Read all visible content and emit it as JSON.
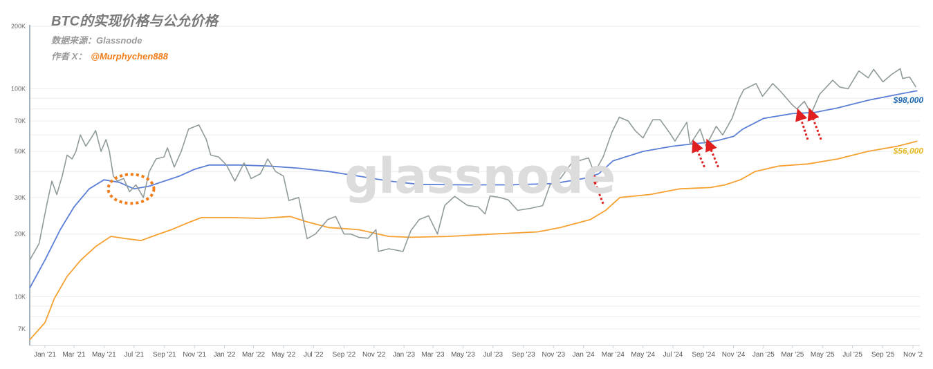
{
  "header": {
    "title": "BTC的实现价格与公允价格",
    "source": "数据来源：Glassnode",
    "author_prefix": "作者 X：",
    "author_handle": "@Murphychen888"
  },
  "watermark": "glassnode",
  "colors": {
    "price": "#8f9a9a",
    "fair": "#5b7fd6",
    "realized": "#f5a030",
    "annotation_arrow": "#e02020",
    "annotation_circle": "#f07d1a",
    "fair_label": "#1e6ab0",
    "realized_label": "#e6b820"
  },
  "chart_data": {
    "type": "line",
    "title": "BTC的实现价格与公允价格",
    "y_scale": "log",
    "ylim": [
      6000,
      200000
    ],
    "yticks": [
      {
        "value": 7000,
        "label": "7K"
      },
      {
        "value": 10000,
        "label": "10K"
      },
      {
        "value": 20000,
        "label": "20K"
      },
      {
        "value": 30000,
        "label": "30K"
      },
      {
        "value": 50000,
        "label": "50K"
      },
      {
        "value": 70000,
        "label": "70K"
      },
      {
        "value": 100000,
        "label": "100K"
      },
      {
        "value": 200000,
        "label": "200K"
      }
    ],
    "xlim": [
      "2020-12-01",
      "2025-11-15"
    ],
    "xticks": [
      {
        "date": "2021-01-01",
        "label": "Jan '21"
      },
      {
        "date": "2021-03-01",
        "label": "Mar '21"
      },
      {
        "date": "2021-05-01",
        "label": "May '21"
      },
      {
        "date": "2021-07-01",
        "label": "Jul '21"
      },
      {
        "date": "2021-09-01",
        "label": "Sep '21"
      },
      {
        "date": "2021-11-01",
        "label": "Nov '21"
      },
      {
        "date": "2022-01-01",
        "label": "Jan '22"
      },
      {
        "date": "2022-03-01",
        "label": "Mar '22"
      },
      {
        "date": "2022-05-01",
        "label": "May '22"
      },
      {
        "date": "2022-07-01",
        "label": "Jul '22"
      },
      {
        "date": "2022-09-01",
        "label": "Sep '22"
      },
      {
        "date": "2022-11-01",
        "label": "Nov '22"
      },
      {
        "date": "2023-01-01",
        "label": "Jan '23"
      },
      {
        "date": "2023-03-01",
        "label": "Mar '23"
      },
      {
        "date": "2023-05-01",
        "label": "May '23"
      },
      {
        "date": "2023-07-01",
        "label": "Jul '23"
      },
      {
        "date": "2023-09-01",
        "label": "Sep '23"
      },
      {
        "date": "2023-11-01",
        "label": "Nov '23"
      },
      {
        "date": "2024-01-01",
        "label": "Jan '24"
      },
      {
        "date": "2024-03-01",
        "label": "Mar '24"
      },
      {
        "date": "2024-05-01",
        "label": "May '24"
      },
      {
        "date": "2024-07-01",
        "label": "Jul '24"
      },
      {
        "date": "2024-09-01",
        "label": "Sep '24"
      },
      {
        "date": "2024-11-01",
        "label": "Nov '24"
      },
      {
        "date": "2025-01-01",
        "label": "Jan '25"
      },
      {
        "date": "2025-03-01",
        "label": "Mar '25"
      },
      {
        "date": "2025-05-01",
        "label": "May '25"
      },
      {
        "date": "2025-07-01",
        "label": "Jul '25"
      },
      {
        "date": "2025-09-01",
        "label": "Sep '25"
      },
      {
        "date": "2025-11-01",
        "label": "Nov '2"
      }
    ],
    "grid": true,
    "series": [
      {
        "key": "price",
        "points": [
          [
            "2020-12-01",
            15000
          ],
          [
            "2020-12-20",
            18000
          ],
          [
            "2021-01-05",
            28000
          ],
          [
            "2021-01-15",
            36000
          ],
          [
            "2021-01-25",
            31000
          ],
          [
            "2021-02-05",
            38000
          ],
          [
            "2021-02-15",
            48000
          ],
          [
            "2021-02-25",
            46000
          ],
          [
            "2021-03-05",
            50000
          ],
          [
            "2021-03-14",
            60000
          ],
          [
            "2021-03-25",
            53000
          ],
          [
            "2021-04-05",
            58000
          ],
          [
            "2021-04-14",
            63000
          ],
          [
            "2021-04-25",
            50000
          ],
          [
            "2021-05-05",
            57000
          ],
          [
            "2021-05-12",
            50000
          ],
          [
            "2021-05-20",
            38000
          ],
          [
            "2021-05-28",
            36000
          ],
          [
            "2021-06-10",
            37000
          ],
          [
            "2021-06-22",
            32000
          ],
          [
            "2021-07-05",
            34500
          ],
          [
            "2021-07-20",
            30000
          ],
          [
            "2021-08-01",
            40000
          ],
          [
            "2021-08-15",
            46000
          ],
          [
            "2021-08-31",
            47000
          ],
          [
            "2021-09-07",
            52000
          ],
          [
            "2021-09-21",
            42000
          ],
          [
            "2021-10-05",
            50000
          ],
          [
            "2021-10-20",
            64000
          ],
          [
            "2021-11-10",
            67000
          ],
          [
            "2021-11-25",
            57000
          ],
          [
            "2021-12-04",
            48000
          ],
          [
            "2021-12-20",
            47000
          ],
          [
            "2022-01-05",
            43000
          ],
          [
            "2022-01-22",
            36000
          ],
          [
            "2022-02-10",
            44000
          ],
          [
            "2022-02-24",
            37000
          ],
          [
            "2022-03-15",
            39000
          ],
          [
            "2022-03-30",
            46000
          ],
          [
            "2022-04-15",
            40000
          ],
          [
            "2022-05-01",
            38000
          ],
          [
            "2022-05-12",
            29000
          ],
          [
            "2022-06-01",
            30000
          ],
          [
            "2022-06-18",
            19000
          ],
          [
            "2022-07-05",
            20000
          ],
          [
            "2022-07-30",
            23500
          ],
          [
            "2022-08-15",
            24300
          ],
          [
            "2022-09-01",
            20000
          ],
          [
            "2022-09-15",
            20000
          ],
          [
            "2022-10-01",
            19300
          ],
          [
            "2022-10-20",
            19100
          ],
          [
            "2022-11-05",
            21000
          ],
          [
            "2022-11-10",
            16500
          ],
          [
            "2022-12-01",
            17000
          ],
          [
            "2022-12-30",
            16500
          ],
          [
            "2023-01-15",
            20800
          ],
          [
            "2023-02-01",
            23500
          ],
          [
            "2023-02-20",
            24500
          ],
          [
            "2023-03-10",
            20000
          ],
          [
            "2023-03-25",
            27500
          ],
          [
            "2023-04-14",
            30400
          ],
          [
            "2023-05-10",
            27500
          ],
          [
            "2023-06-01",
            27000
          ],
          [
            "2023-06-15",
            25000
          ],
          [
            "2023-06-25",
            30500
          ],
          [
            "2023-07-15",
            30000
          ],
          [
            "2023-08-01",
            29200
          ],
          [
            "2023-08-20",
            26000
          ],
          [
            "2023-09-15",
            26600
          ],
          [
            "2023-10-10",
            27400
          ],
          [
            "2023-10-25",
            34500
          ],
          [
            "2023-11-15",
            37000
          ],
          [
            "2023-12-08",
            44000
          ],
          [
            "2024-01-11",
            46500
          ],
          [
            "2024-01-23",
            39500
          ],
          [
            "2024-02-10",
            47000
          ],
          [
            "2024-02-28",
            62000
          ],
          [
            "2024-03-14",
            73000
          ],
          [
            "2024-04-01",
            70000
          ],
          [
            "2024-04-15",
            63000
          ],
          [
            "2024-05-01",
            58000
          ],
          [
            "2024-05-21",
            71000
          ],
          [
            "2024-06-05",
            71000
          ],
          [
            "2024-06-25",
            61000
          ],
          [
            "2024-07-05",
            56000
          ],
          [
            "2024-07-29",
            69000
          ],
          [
            "2024-08-05",
            54000
          ],
          [
            "2024-08-25",
            64000
          ],
          [
            "2024-09-06",
            53000
          ],
          [
            "2024-09-27",
            66000
          ],
          [
            "2024-10-10",
            60000
          ],
          [
            "2024-10-29",
            72000
          ],
          [
            "2024-11-13",
            90000
          ],
          [
            "2024-11-22",
            99000
          ],
          [
            "2024-12-17",
            106000
          ],
          [
            "2024-12-30",
            92000
          ],
          [
            "2025-01-20",
            106000
          ],
          [
            "2025-02-05",
            97000
          ],
          [
            "2025-02-28",
            84000
          ],
          [
            "2025-03-10",
            80000
          ],
          [
            "2025-03-25",
            87000
          ],
          [
            "2025-04-08",
            76000
          ],
          [
            "2025-04-25",
            94000
          ],
          [
            "2025-05-22",
            110000
          ],
          [
            "2025-06-05",
            102000
          ],
          [
            "2025-06-22",
            100000
          ],
          [
            "2025-07-14",
            122000
          ],
          [
            "2025-08-02",
            113000
          ],
          [
            "2025-08-13",
            124000
          ],
          [
            "2025-09-01",
            108000
          ],
          [
            "2025-09-18",
            117000
          ],
          [
            "2025-10-06",
            125000
          ],
          [
            "2025-10-11",
            112000
          ],
          [
            "2025-10-25",
            114000
          ],
          [
            "2025-11-07",
            102000
          ]
        ]
      },
      {
        "key": "fair",
        "points": [
          [
            "2020-12-01",
            11000
          ],
          [
            "2021-01-01",
            15000
          ],
          [
            "2021-02-01",
            21000
          ],
          [
            "2021-03-01",
            27000
          ],
          [
            "2021-04-01",
            33000
          ],
          [
            "2021-05-01",
            36500
          ],
          [
            "2021-06-01",
            35500
          ],
          [
            "2021-07-01",
            33000
          ],
          [
            "2021-08-01",
            34000
          ],
          [
            "2021-09-01",
            36000
          ],
          [
            "2021-10-01",
            38000
          ],
          [
            "2021-11-01",
            41000
          ],
          [
            "2021-12-01",
            43000
          ],
          [
            "2022-02-01",
            43000
          ],
          [
            "2022-04-01",
            42500
          ],
          [
            "2022-06-01",
            41500
          ],
          [
            "2022-08-01",
            40000
          ],
          [
            "2022-10-01",
            38000
          ],
          [
            "2022-12-01",
            36000
          ],
          [
            "2023-02-01",
            34700
          ],
          [
            "2023-05-01",
            34500
          ],
          [
            "2023-08-01",
            34500
          ],
          [
            "2023-11-01",
            35000
          ],
          [
            "2024-01-01",
            37000
          ],
          [
            "2024-02-01",
            39000
          ],
          [
            "2024-03-01",
            45000
          ],
          [
            "2024-05-01",
            50000
          ],
          [
            "2024-07-01",
            53000
          ],
          [
            "2024-08-01",
            54000
          ],
          [
            "2024-09-01",
            55000
          ],
          [
            "2024-10-01",
            56500
          ],
          [
            "2024-11-01",
            59000
          ],
          [
            "2024-11-20",
            64000
          ],
          [
            "2025-01-01",
            72000
          ],
          [
            "2025-03-01",
            76000
          ],
          [
            "2025-04-15",
            77000
          ],
          [
            "2025-06-01",
            81000
          ],
          [
            "2025-08-01",
            88000
          ],
          [
            "2025-10-01",
            94000
          ],
          [
            "2025-11-10",
            98000
          ]
        ]
      },
      {
        "key": "realized",
        "points": [
          [
            "2020-12-01",
            6200
          ],
          [
            "2021-01-01",
            7500
          ],
          [
            "2021-01-20",
            9800
          ],
          [
            "2021-02-15",
            12500
          ],
          [
            "2021-03-15",
            15000
          ],
          [
            "2021-04-15",
            17500
          ],
          [
            "2021-05-15",
            19500
          ],
          [
            "2021-06-15",
            19000
          ],
          [
            "2021-07-15",
            18600
          ],
          [
            "2021-08-15",
            19800
          ],
          [
            "2021-09-15",
            21000
          ],
          [
            "2021-10-15",
            22500
          ],
          [
            "2021-11-15",
            24000
          ],
          [
            "2022-01-15",
            24000
          ],
          [
            "2022-03-15",
            23800
          ],
          [
            "2022-05-15",
            24300
          ],
          [
            "2022-06-15",
            23000
          ],
          [
            "2022-08-01",
            21500
          ],
          [
            "2022-10-01",
            21000
          ],
          [
            "2022-12-01",
            19500
          ],
          [
            "2023-01-15",
            19300
          ],
          [
            "2023-04-01",
            19500
          ],
          [
            "2023-07-01",
            20000
          ],
          [
            "2023-10-01",
            20500
          ],
          [
            "2023-11-15",
            21500
          ],
          [
            "2024-01-15",
            23500
          ],
          [
            "2024-02-15",
            26000
          ],
          [
            "2024-03-15",
            30000
          ],
          [
            "2024-05-15",
            31000
          ],
          [
            "2024-07-15",
            33000
          ],
          [
            "2024-09-15",
            33500
          ],
          [
            "2024-10-15",
            34500
          ],
          [
            "2024-11-15",
            36500
          ],
          [
            "2024-12-15",
            40000
          ],
          [
            "2025-02-01",
            42500
          ],
          [
            "2025-04-01",
            43500
          ],
          [
            "2025-06-01",
            46000
          ],
          [
            "2025-08-01",
            50000
          ],
          [
            "2025-10-01",
            53000
          ],
          [
            "2025-11-10",
            56000
          ]
        ]
      }
    ],
    "annotations": {
      "fair_label": "$98,000",
      "realized_label": "$56,000",
      "arrows": [
        {
          "tail": [
            "2024-02-10",
            28000
          ],
          "head": [
            "2024-01-20",
            37500
          ]
        },
        {
          "tail": [
            "2024-09-03",
            42000
          ],
          "head": [
            "2024-08-15",
            53500
          ]
        },
        {
          "tail": [
            "2024-10-01",
            42000
          ],
          "head": [
            "2024-09-12",
            54000
          ]
        },
        {
          "tail": [
            "2025-04-01",
            57000
          ],
          "head": [
            "2025-03-15",
            75500
          ]
        },
        {
          "tail": [
            "2025-04-28",
            57000
          ],
          "head": [
            "2025-04-08",
            76000
          ]
        }
      ],
      "circle": {
        "center": [
          "2021-06-25",
          33000
        ]
      }
    }
  }
}
